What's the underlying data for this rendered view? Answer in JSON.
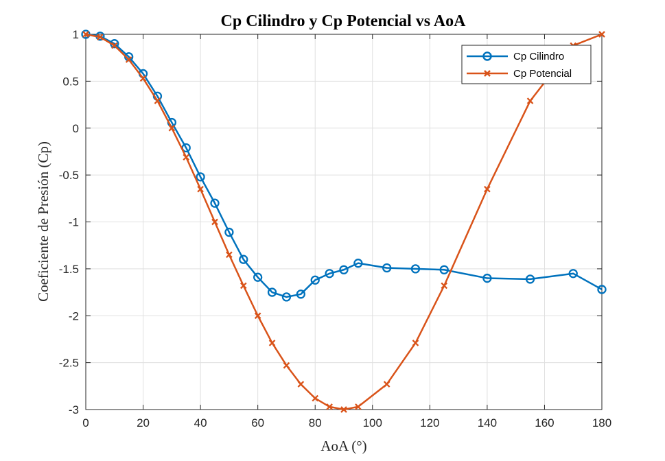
{
  "chart_data": {
    "type": "line",
    "title": "Cp Cilindro y Cp Potencial vs AoA",
    "xlabel": "AoA (°)",
    "ylabel": "Coeficiente de Presión (Cp)",
    "xlim": [
      0,
      180
    ],
    "ylim": [
      -3,
      1
    ],
    "xticks": [
      0,
      20,
      40,
      60,
      80,
      100,
      120,
      140,
      160,
      180
    ],
    "yticks": [
      -3,
      -2.5,
      -2,
      -1.5,
      -1,
      -0.5,
      0,
      0.5,
      1
    ],
    "grid": true,
    "legend_position": "top-right",
    "series": [
      {
        "name": "Cp Cilindro",
        "color": "#0072BD",
        "marker": "circle",
        "x": [
          0,
          5,
          10,
          15,
          20,
          25,
          30,
          35,
          40,
          45,
          50,
          55,
          60,
          65,
          70,
          75,
          80,
          85,
          90,
          95,
          105,
          115,
          125,
          140,
          155,
          170,
          180
        ],
        "y": [
          1.0,
          0.98,
          0.9,
          0.76,
          0.58,
          0.34,
          0.06,
          -0.21,
          -0.52,
          -0.8,
          -1.11,
          -1.4,
          -1.59,
          -1.75,
          -1.8,
          -1.77,
          -1.62,
          -1.55,
          -1.51,
          -1.44,
          -1.49,
          -1.5,
          -1.51,
          -1.6,
          -1.61,
          -1.55,
          -1.72
        ]
      },
      {
        "name": "Cp Potencial",
        "color": "#D95319",
        "marker": "x",
        "x": [
          0,
          5,
          10,
          15,
          20,
          25,
          30,
          35,
          40,
          45,
          50,
          55,
          60,
          65,
          70,
          75,
          80,
          85,
          90,
          95,
          105,
          115,
          125,
          140,
          155,
          170,
          180
        ],
        "y": [
          1.0,
          0.97,
          0.88,
          0.73,
          0.53,
          0.29,
          0.0,
          -0.31,
          -0.65,
          -1.0,
          -1.35,
          -1.68,
          -2.0,
          -2.29,
          -2.53,
          -2.73,
          -2.88,
          -2.97,
          -3.0,
          -2.97,
          -2.73,
          -2.29,
          -1.68,
          -0.65,
          0.29,
          0.88,
          1.0
        ]
      }
    ]
  }
}
